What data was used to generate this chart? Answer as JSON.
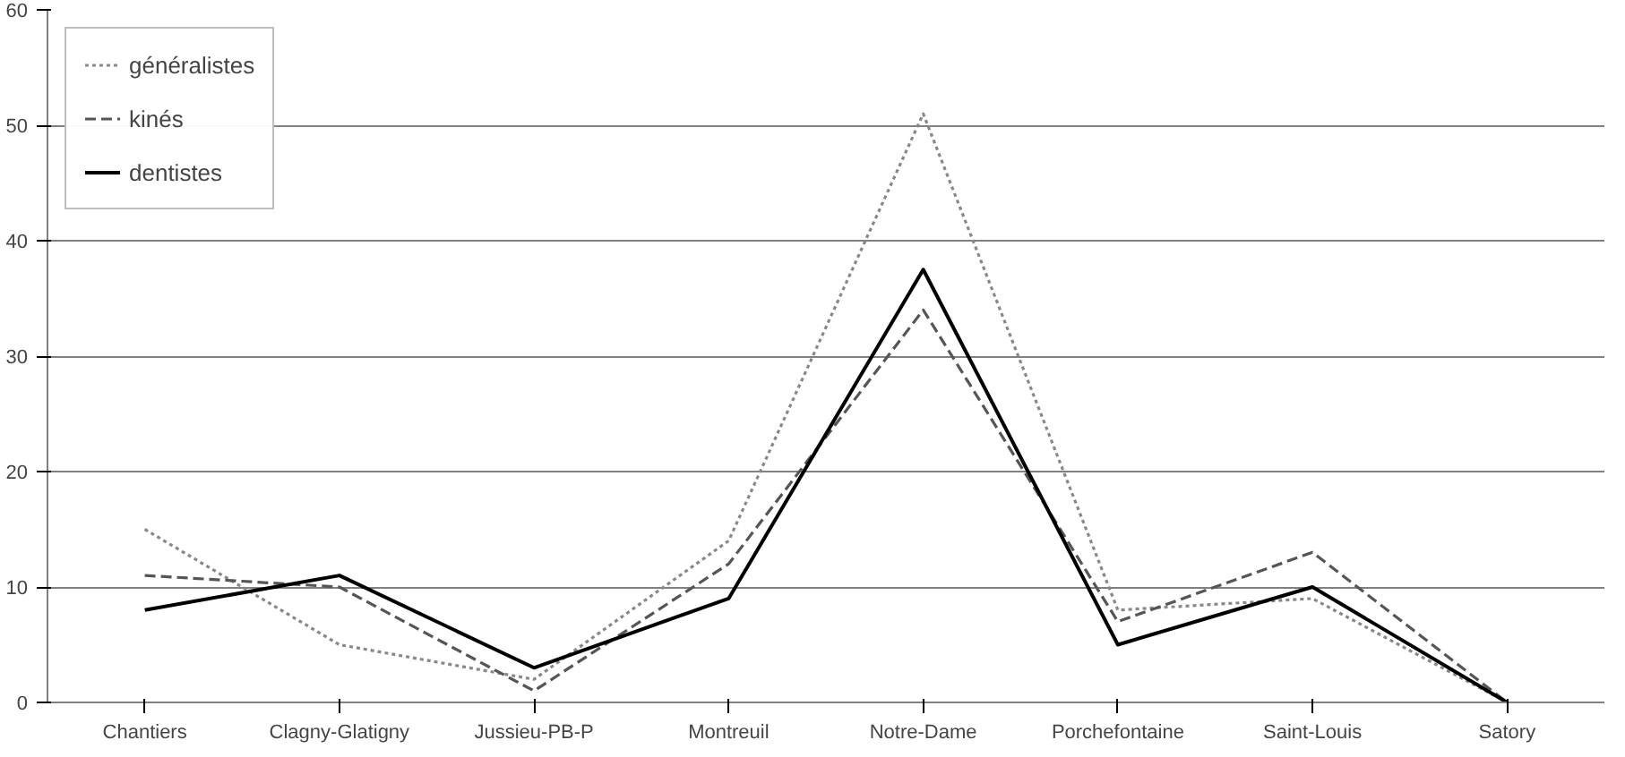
{
  "chart_data": {
    "type": "line",
    "categories": [
      "Chantiers",
      "Clagny-Glatigny",
      "Jussieu-PB-P",
      "Montreuil",
      "Notre-Dame",
      "Porchefontaine",
      "Saint-Louis",
      "Satory"
    ],
    "series": [
      {
        "name": "généralistes",
        "color": "#888888",
        "line_style": "dotted",
        "values": [
          15,
          5,
          2,
          14,
          51,
          8,
          9,
          0
        ]
      },
      {
        "name": "kinés",
        "color": "#555555",
        "line_style": "dashed",
        "values": [
          11,
          10,
          1,
          12,
          34,
          7,
          13,
          0
        ]
      },
      {
        "name": "dentistes",
        "color": "#000000",
        "line_style": "solid",
        "values": [
          8,
          11,
          3,
          9,
          37.5,
          5,
          10,
          0
        ]
      }
    ],
    "ylim": [
      0,
      60
    ],
    "yticks": [
      0,
      10,
      20,
      30,
      40,
      50,
      60
    ],
    "grid": "y",
    "legend": "top left",
    "marker": "none"
  }
}
